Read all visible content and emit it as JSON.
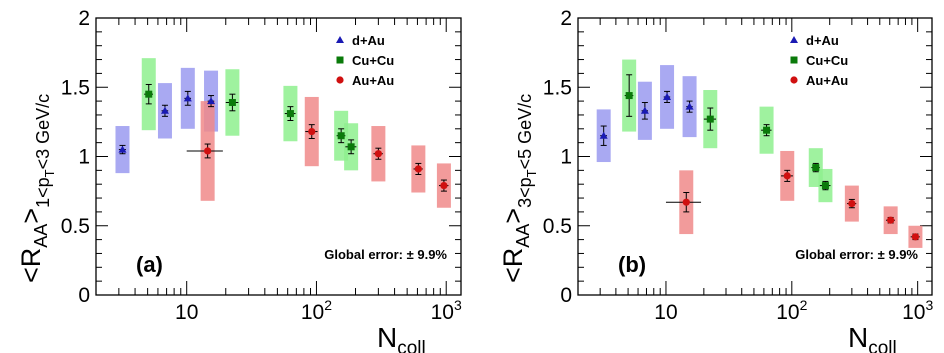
{
  "colors": {
    "dAu": "#1a1ab3",
    "dAu_box": "#9a9af0",
    "CuCu": "#0a7a0a",
    "CuCu_box": "#8ef08e",
    "AuAu": "#d01010",
    "AuAu_box": "#f08a8a"
  },
  "chart_data": [
    {
      "type": "scatter",
      "panel_label": "(a)",
      "ylabel_main": "<R",
      "ylabel_sub": "AA",
      "ylabel_tail": ">",
      "ylabel_range": "1<p",
      "ylabel_range_sub": "T",
      "ylabel_range_tail": "<3 GeV/c",
      "xlabel_main": "N",
      "xlabel_sub": "coll",
      "x_scale": "log",
      "xlim": [
        2,
        1300
      ],
      "ylim": [
        0,
        2
      ],
      "x_tick_labels": [
        {
          "value": 10,
          "base": "10",
          "exp": ""
        },
        {
          "value": 100,
          "base": "10",
          "exp": "2"
        },
        {
          "value": 1000,
          "base": "10",
          "exp": "3"
        }
      ],
      "y_ticks": [
        0,
        0.5,
        1,
        1.5,
        2
      ],
      "y_tick_labels": [
        "0",
        "0.5",
        "1",
        "1.5",
        "2"
      ],
      "global_error": "Global error: ± 9.9%",
      "legend": [
        "d+Au",
        "Cu+Cu",
        "Au+Au"
      ],
      "series": [
        {
          "name": "d+Au",
          "marker": "triangle",
          "points": [
            {
              "x": 3.2,
              "y": 1.05,
              "ey": 0.03,
              "ex": 0.2,
              "sys": 0.17
            },
            {
              "x": 6.8,
              "y": 1.33,
              "ey": 0.04,
              "ex": 0.4,
              "sys": 0.2
            },
            {
              "x": 10.2,
              "y": 1.42,
              "ey": 0.05,
              "ex": 0.6,
              "sys": 0.22
            },
            {
              "x": 15.4,
              "y": 1.4,
              "ey": 0.04,
              "ex": 0.9,
              "sys": 0.22
            }
          ]
        },
        {
          "name": "Cu+Cu",
          "marker": "square",
          "points": [
            {
              "x": 5.1,
              "y": 1.45,
              "ey": 0.07,
              "ex": 0.4,
              "sys": 0.26
            },
            {
              "x": 22.5,
              "y": 1.39,
              "ey": 0.06,
              "ex": 2.5,
              "sys": 0.24
            },
            {
              "x": 63,
              "y": 1.31,
              "ey": 0.05,
              "ex": 6,
              "sys": 0.2
            },
            {
              "x": 155,
              "y": 1.15,
              "ey": 0.05,
              "ex": 12,
              "sys": 0.18
            },
            {
              "x": 185,
              "y": 1.07,
              "ey": 0.05,
              "ex": 18,
              "sys": 0.17
            }
          ]
        },
        {
          "name": "Au+Au",
          "marker": "circle",
          "points": [
            {
              "x": 14.5,
              "y": 1.04,
              "ey": 0.05,
              "ex": 4.5,
              "sys": 0.36
            },
            {
              "x": 92,
              "y": 1.18,
              "ey": 0.05,
              "ex": 10,
              "sys": 0.25
            },
            {
              "x": 300,
              "y": 1.02,
              "ey": 0.04,
              "ex": 25,
              "sys": 0.2
            },
            {
              "x": 610,
              "y": 0.91,
              "ey": 0.04,
              "ex": 50,
              "sys": 0.17
            },
            {
              "x": 960,
              "y": 0.79,
              "ey": 0.04,
              "ex": 80,
              "sys": 0.16
            }
          ]
        }
      ]
    },
    {
      "type": "scatter",
      "panel_label": "(b)",
      "ylabel_main": "<R",
      "ylabel_sub": "AA",
      "ylabel_tail": ">",
      "ylabel_range": "3<p",
      "ylabel_range_sub": "T",
      "ylabel_range_tail": "<5 GeV/c",
      "xlabel_main": "N",
      "xlabel_sub": "coll",
      "x_scale": "log",
      "xlim": [
        2,
        1300
      ],
      "ylim": [
        0,
        2
      ],
      "x_tick_labels": [
        {
          "value": 10,
          "base": "10",
          "exp": ""
        },
        {
          "value": 100,
          "base": "10",
          "exp": "2"
        },
        {
          "value": 1000,
          "base": "10",
          "exp": "3"
        }
      ],
      "y_ticks": [
        0,
        0.5,
        1,
        1.5,
        2
      ],
      "y_tick_labels": [
        "0",
        "0.5",
        "1",
        "1.5",
        "2"
      ],
      "global_error": "Global error: ± 9.9%",
      "legend": [
        "d+Au",
        "Cu+Cu",
        "Au+Au"
      ],
      "series": [
        {
          "name": "d+Au",
          "marker": "triangle",
          "points": [
            {
              "x": 3.2,
              "y": 1.15,
              "ey": 0.07,
              "ex": 0.2,
              "sys": 0.19
            },
            {
              "x": 6.8,
              "y": 1.33,
              "ey": 0.06,
              "ex": 0.4,
              "sys": 0.21
            },
            {
              "x": 10.2,
              "y": 1.43,
              "ey": 0.04,
              "ex": 0.6,
              "sys": 0.23
            },
            {
              "x": 15.4,
              "y": 1.36,
              "ey": 0.04,
              "ex": 0.9,
              "sys": 0.22
            }
          ]
        },
        {
          "name": "Cu+Cu",
          "marker": "square",
          "points": [
            {
              "x": 5.1,
              "y": 1.44,
              "ey": 0.15,
              "ex": 0.4,
              "sys": 0.26
            },
            {
              "x": 22.5,
              "y": 1.27,
              "ey": 0.08,
              "ex": 2.5,
              "sys": 0.21
            },
            {
              "x": 63,
              "y": 1.19,
              "ey": 0.04,
              "ex": 6,
              "sys": 0.17
            },
            {
              "x": 155,
              "y": 0.92,
              "ey": 0.03,
              "ex": 12,
              "sys": 0.14
            },
            {
              "x": 185,
              "y": 0.79,
              "ey": 0.03,
              "ex": 18,
              "sys": 0.12
            }
          ]
        },
        {
          "name": "Au+Au",
          "marker": "circle",
          "points": [
            {
              "x": 14.5,
              "y": 0.67,
              "ey": 0.07,
              "ex": 4.5,
              "sys": 0.23
            },
            {
              "x": 92,
              "y": 0.86,
              "ey": 0.04,
              "ex": 10,
              "sys": 0.18
            },
            {
              "x": 300,
              "y": 0.66,
              "ey": 0.03,
              "ex": 25,
              "sys": 0.13
            },
            {
              "x": 610,
              "y": 0.54,
              "ey": 0.02,
              "ex": 50,
              "sys": 0.1
            },
            {
              "x": 960,
              "y": 0.42,
              "ey": 0.02,
              "ex": 80,
              "sys": 0.08
            }
          ]
        }
      ]
    }
  ]
}
